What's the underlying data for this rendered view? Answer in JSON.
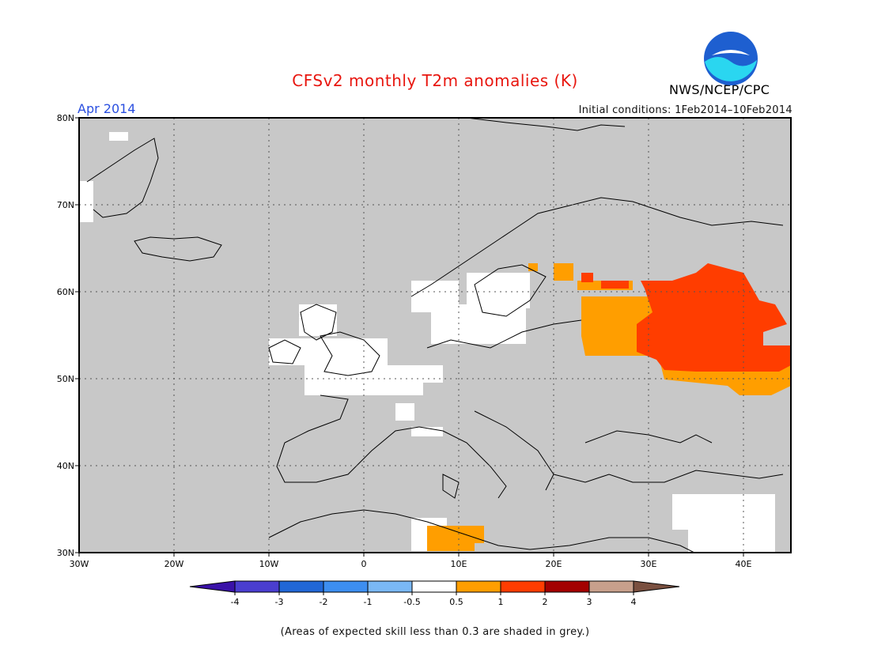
{
  "title": "CFSv2 monthly T2m anomalies (K)",
  "period": "Apr 2014",
  "initial_conditions": "Initial conditions: 1Feb2014–10Feb2014",
  "agency": "NWS/NCEP/CPC",
  "logo_text": "NOAA",
  "skill_note": "(Areas of expected skill less than 0.3 are shaded in grey.)",
  "map": {
    "lon_range": [
      -30,
      45
    ],
    "lat_range": [
      30,
      80
    ],
    "x_ticks": [
      "30W",
      "20W",
      "10W",
      "0",
      "10E",
      "20E",
      "30E",
      "40E"
    ],
    "y_ticks": [
      "80N",
      "70N",
      "60N",
      "50N",
      "40N",
      "30N"
    ],
    "background_color": "#c8c8c8",
    "grid": "dotted"
  },
  "colorbar": {
    "labels": [
      "-4",
      "-3",
      "-2",
      "-1",
      "-0.5",
      "0.5",
      "1",
      "2",
      "3",
      "4"
    ],
    "colors": [
      "#3a12a8",
      "#4a3ecf",
      "#2167d6",
      "#3d8ef0",
      "#7ab8f5",
      "#ffffff",
      "#ff9e00",
      "#ff3d00",
      "#a30000",
      "#c8a08c",
      "#7a5040"
    ]
  },
  "anomaly_regions": [
    {
      "category": "0.5 to 1",
      "color": "#ff9e00",
      "area": "Western Russia / Baltic states"
    },
    {
      "category": "1 to 2",
      "color": "#ff3d00",
      "area": "Western Russia"
    },
    {
      "category": "-0.5 to 0.5",
      "color": "#ffffff",
      "area": "UK, North Sea, southern Scandinavia, France, Middle East"
    }
  ]
}
